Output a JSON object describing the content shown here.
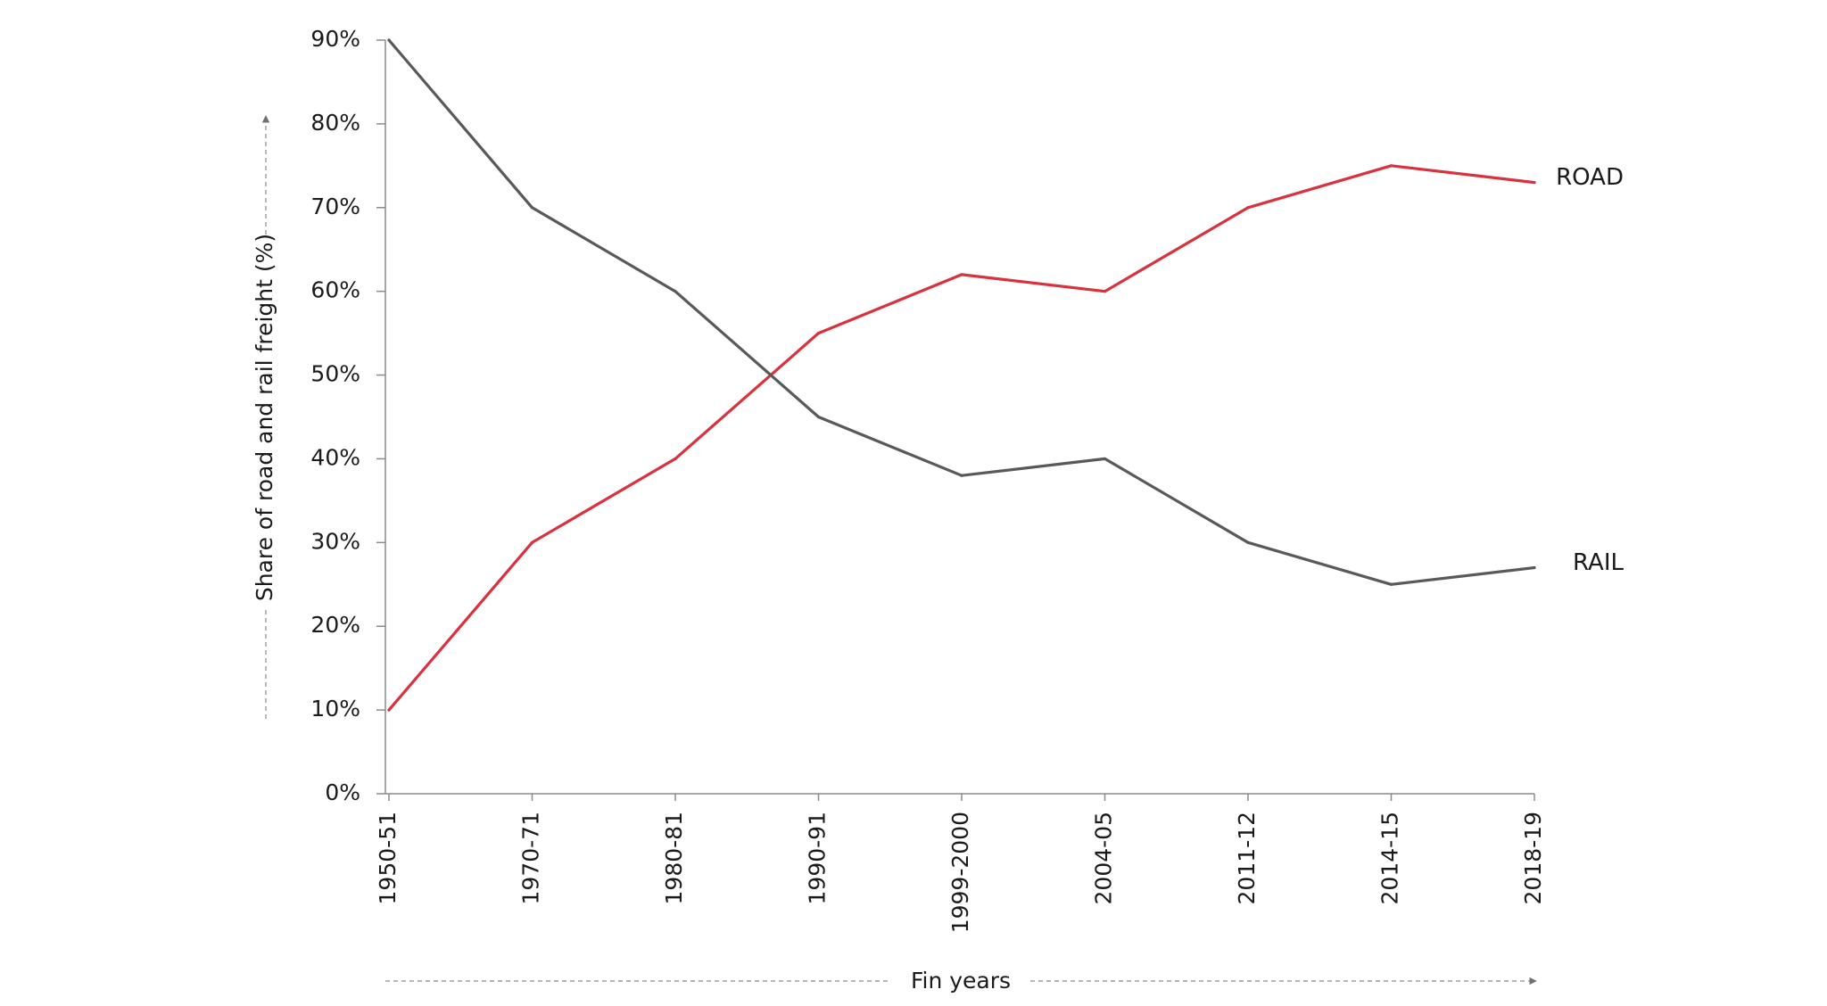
{
  "chart_data": {
    "type": "line",
    "categories": [
      "1950-51",
      "1970-71",
      "1980-81",
      "1990-91",
      "1999-2000",
      "2004-05",
      "2011-12",
      "2014-15",
      "2018-19"
    ],
    "series": [
      {
        "name": "ROAD",
        "color": "#d9323f",
        "values": [
          10,
          30,
          40,
          55,
          62,
          60,
          70,
          75,
          73
        ]
      },
      {
        "name": "RAIL",
        "color": "#595959",
        "values": [
          90,
          70,
          60,
          45,
          38,
          40,
          30,
          25,
          27
        ]
      }
    ],
    "title": "",
    "xlabel": "Fin years",
    "ylabel": "Share of road and rail freight (%)",
    "ylim": [
      0,
      90
    ],
    "yticks": [
      0,
      10,
      20,
      30,
      40,
      50,
      60,
      70,
      80,
      90
    ],
    "ytick_labels": [
      "0%",
      "10%",
      "20%",
      "30%",
      "40%",
      "50%",
      "60%",
      "70%",
      "80%",
      "90%"
    ],
    "grid": false,
    "legend": "direct labels at line ends"
  }
}
